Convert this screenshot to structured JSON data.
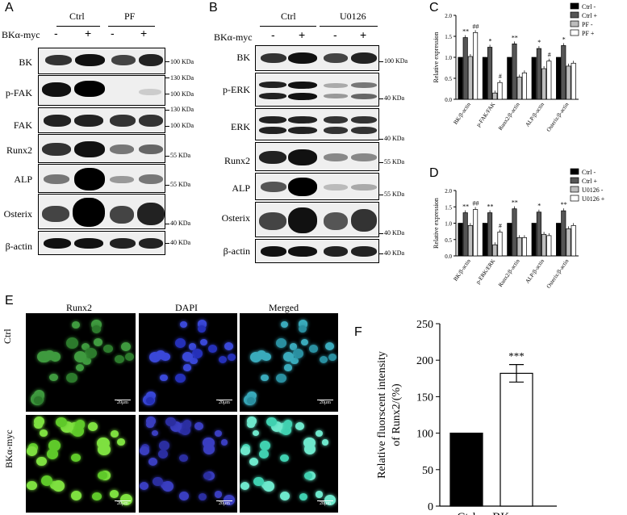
{
  "panels": {
    "A": "A",
    "B": "B",
    "C": "C",
    "D": "D",
    "E": "E",
    "F": "F"
  },
  "panelA": {
    "groups": [
      "Ctrl",
      "PF"
    ],
    "condition_label": "BKα-myc",
    "signs": [
      "-",
      "+",
      "-",
      "+"
    ],
    "rows": [
      "BK",
      "p-FAK",
      "FAK",
      "Runx2",
      "ALP",
      "Osterix",
      "β-actin"
    ],
    "markers": [
      "100 KDa",
      "130 KDa",
      "100 KDa",
      "130 KDa",
      "100 KDa",
      "55 KDa",
      "55 KDa",
      "40 KDa",
      "40 KDa"
    ]
  },
  "panelB": {
    "groups": [
      "Ctrl",
      "U0126"
    ],
    "condition_label": "BKα-myc",
    "signs": [
      "-",
      "+",
      "-",
      "+"
    ],
    "rows": [
      "BK",
      "p-ERK",
      "ERK",
      "Runx2",
      "ALP",
      "Osterix",
      "β-actin"
    ],
    "markers": [
      "100 KDa",
      "40 KDa",
      "40 KDa",
      "55 KDa",
      "55 KDa",
      "40 KDa",
      "40 KDa"
    ]
  },
  "panelE": {
    "columns": [
      "Runx2",
      "DAPI",
      "Merged"
    ],
    "rows": [
      "Ctrl",
      "BKα-myc"
    ],
    "scale": "20μm"
  },
  "chart_data": [
    {
      "type": "bar",
      "panel": "C",
      "ylabel": "Relative expression",
      "ylim": [
        0,
        2.0
      ],
      "yticks": [
        "0.0",
        "0.5",
        "1.0",
        "1.5",
        "2.0"
      ],
      "categories": [
        "BK/β-actin",
        "p-FAK/FAK",
        "Runx2/β-actin",
        "ALP/β-actin",
        "Osterix/β-actin"
      ],
      "series": [
        {
          "name": "Ctrl -",
          "color": "#000000",
          "values": [
            1.0,
            1.0,
            1.0,
            1.0,
            1.0
          ]
        },
        {
          "name": "Ctrl +",
          "color": "#555555",
          "values": [
            1.47,
            1.24,
            1.32,
            1.21,
            1.28
          ]
        },
        {
          "name": "PF  -",
          "color": "#bdbdbd",
          "values": [
            1.02,
            0.15,
            0.53,
            0.73,
            0.79
          ]
        },
        {
          "name": "PF +",
          "color": "#ffffff",
          "values": [
            1.59,
            0.4,
            0.63,
            0.91,
            0.86
          ]
        }
      ],
      "annotations": [
        {
          "cat": 0,
          "series": 1,
          "text": "**"
        },
        {
          "cat": 0,
          "series": 3,
          "text": "##"
        },
        {
          "cat": 1,
          "series": 1,
          "text": "*"
        },
        {
          "cat": 1,
          "series": 3,
          "text": "#"
        },
        {
          "cat": 2,
          "series": 1,
          "text": "**"
        },
        {
          "cat": 3,
          "series": 1,
          "text": "*"
        },
        {
          "cat": 3,
          "series": 3,
          "text": "#"
        },
        {
          "cat": 4,
          "series": 1,
          "text": "*"
        }
      ],
      "legend": "top-right"
    },
    {
      "type": "bar",
      "panel": "D",
      "ylabel": "Relative expression",
      "ylim": [
        0,
        2.0
      ],
      "yticks": [
        "0.0",
        "0.5",
        "1.0",
        "1.5",
        "2.0"
      ],
      "categories": [
        "BK/β-actin",
        "p-ERK/ERK",
        "Runx2/β-actin",
        "ALP/β-actin",
        "Osterix/β-actin"
      ],
      "series": [
        {
          "name": "Ctrl -",
          "color": "#000000",
          "values": [
            1.0,
            1.0,
            1.0,
            1.0,
            1.0
          ]
        },
        {
          "name": "Ctrl +",
          "color": "#555555",
          "values": [
            1.32,
            1.32,
            1.44,
            1.34,
            1.38
          ]
        },
        {
          "name": "U0126 -",
          "color": "#bdbdbd",
          "values": [
            0.93,
            0.34,
            0.56,
            0.66,
            0.83
          ]
        },
        {
          "name": "U0126 +",
          "color": "#ffffff",
          "values": [
            1.42,
            0.73,
            0.56,
            0.62,
            0.93
          ]
        }
      ],
      "annotations": [
        {
          "cat": 0,
          "series": 1,
          "text": "**"
        },
        {
          "cat": 0,
          "series": 3,
          "text": "##"
        },
        {
          "cat": 1,
          "series": 1,
          "text": "**"
        },
        {
          "cat": 1,
          "series": 3,
          "text": "#"
        },
        {
          "cat": 2,
          "series": 1,
          "text": "**"
        },
        {
          "cat": 3,
          "series": 1,
          "text": "*"
        },
        {
          "cat": 4,
          "series": 1,
          "text": "**"
        }
      ],
      "legend": "top-right"
    },
    {
      "type": "bar",
      "panel": "F",
      "ylabel": "Relative fluorscent intensity of Runx2/(%)",
      "ylim": [
        0,
        250
      ],
      "yticks": [
        "0",
        "50",
        "100",
        "150",
        "200",
        "250"
      ],
      "categories": [
        "Ctrl",
        "BKα-myc"
      ],
      "values": [
        100,
        182
      ],
      "errors": [
        0,
        12
      ],
      "colors": [
        "#000000",
        "#ffffff"
      ],
      "annotation": "***"
    }
  ]
}
